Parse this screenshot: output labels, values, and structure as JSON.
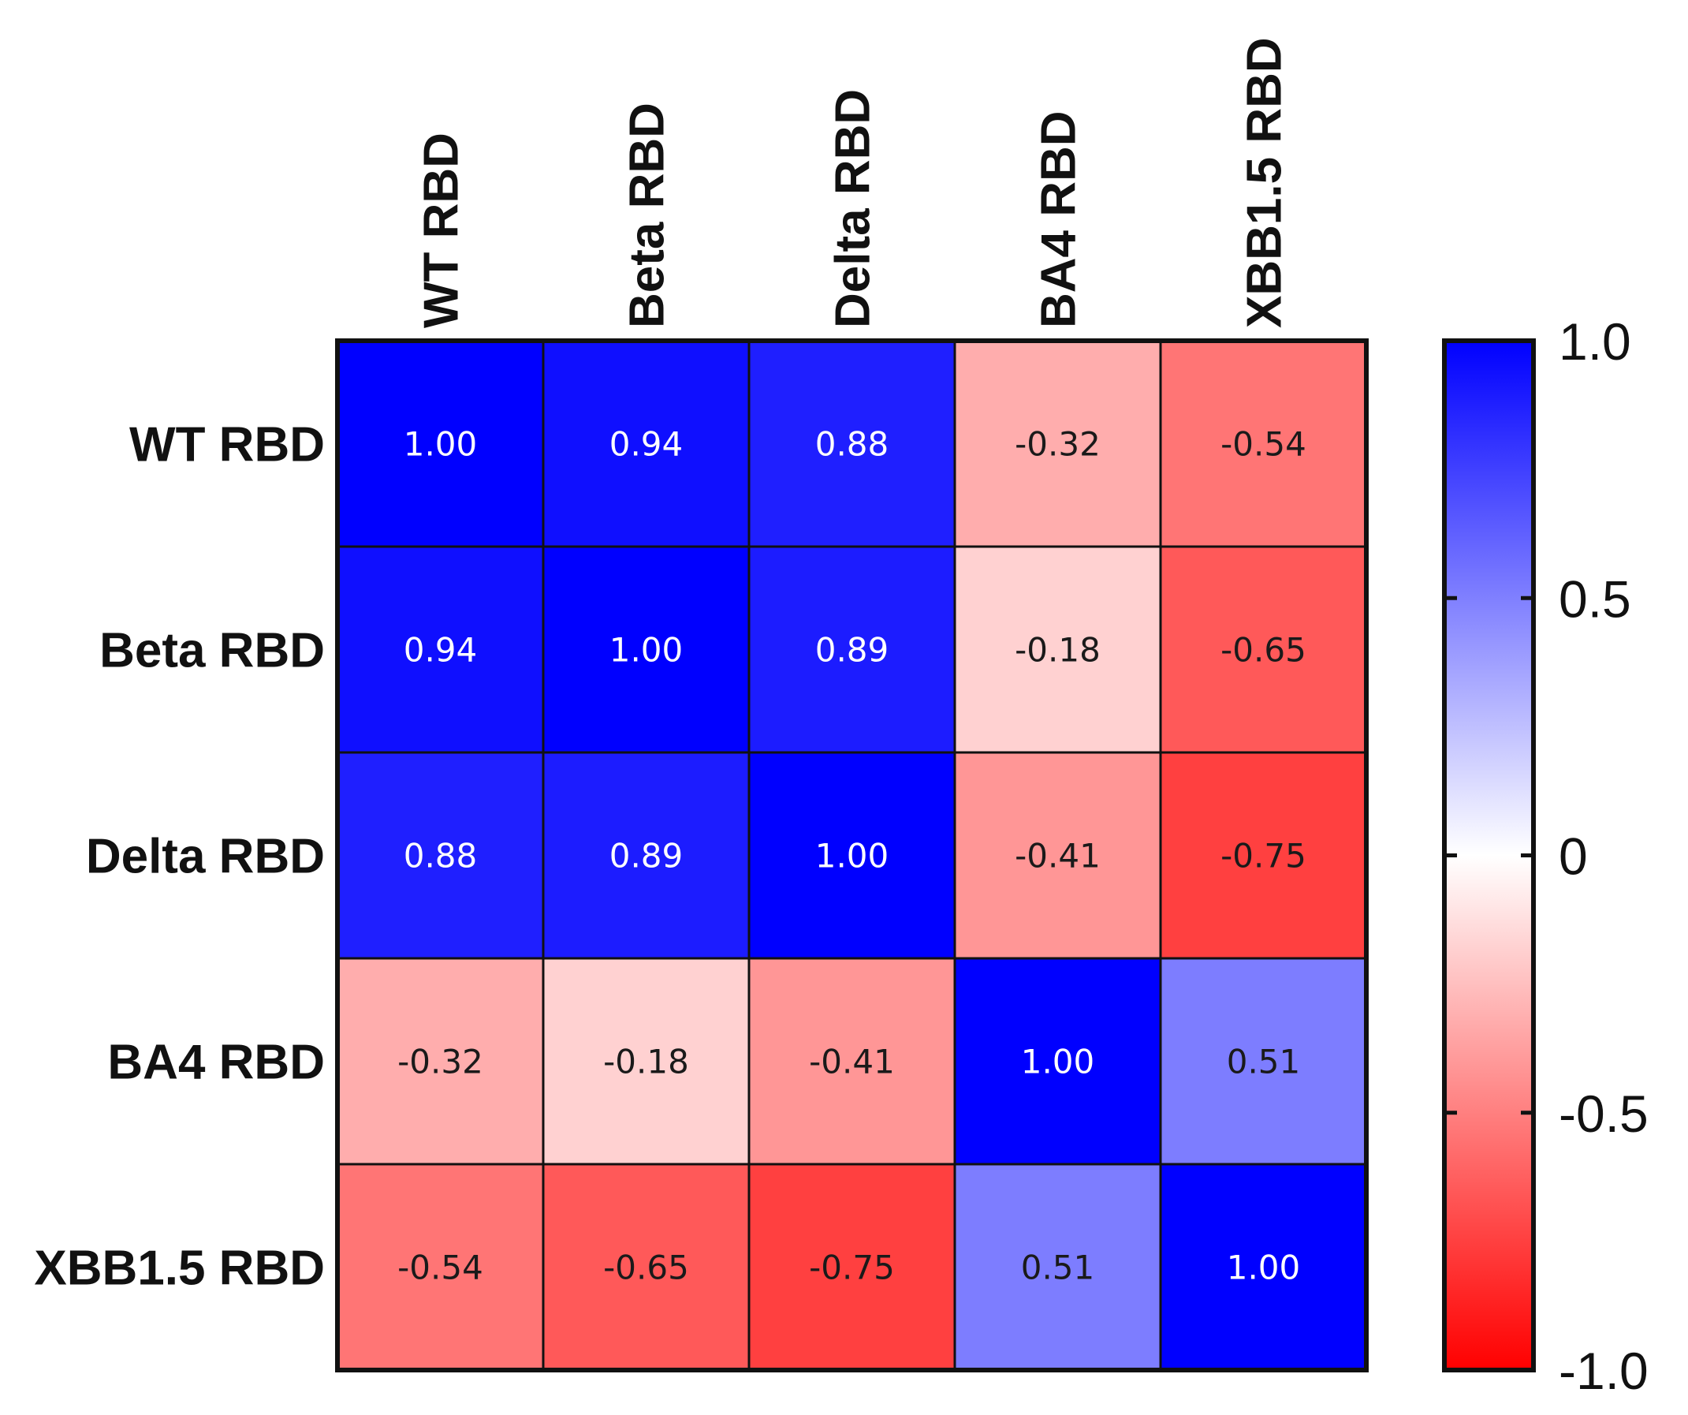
{
  "chart_data": {
    "type": "heatmap",
    "title": "",
    "rows": [
      "WT RBD",
      "Beta RBD",
      "Delta RBD",
      "BA4 RBD",
      "XBB1.5 RBD"
    ],
    "columns": [
      "WT RBD",
      "Beta RBD",
      "Delta RBD",
      "BA4 RBD",
      "XBB1.5 RBD"
    ],
    "values": [
      [
        1.0,
        0.94,
        0.88,
        -0.32,
        -0.54
      ],
      [
        0.94,
        1.0,
        0.89,
        -0.18,
        -0.65
      ],
      [
        0.88,
        0.89,
        1.0,
        -0.41,
        -0.75
      ],
      [
        -0.32,
        -0.18,
        -0.41,
        1.0,
        0.51
      ],
      [
        -0.54,
        -0.65,
        -0.75,
        0.51,
        1.0
      ]
    ],
    "cell_labels": [
      [
        "1.00",
        "0.94",
        "0.88",
        "-0.32",
        "-0.54"
      ],
      [
        "0.94",
        "1.00",
        "0.89",
        "-0.18",
        "-0.65"
      ],
      [
        "0.88",
        "0.89",
        "1.00",
        "-0.41",
        "-0.75"
      ],
      [
        "-0.32",
        "-0.18",
        "-0.41",
        "1.00",
        "0.51"
      ],
      [
        "-0.54",
        "-0.65",
        "-0.75",
        "0.51",
        "1.00"
      ]
    ],
    "colorbar": {
      "range": [
        -1.0,
        1.0
      ],
      "ticks": [
        1.0,
        0.5,
        0,
        -0.5,
        -1.0
      ],
      "tick_labels": [
        "1.0",
        "0.5",
        "0",
        "-0.5",
        "-1.0"
      ],
      "color_high": "#0000ff",
      "color_mid": "#ffffff",
      "color_low": "#ff0000"
    },
    "grid": true,
    "legend": "right"
  }
}
